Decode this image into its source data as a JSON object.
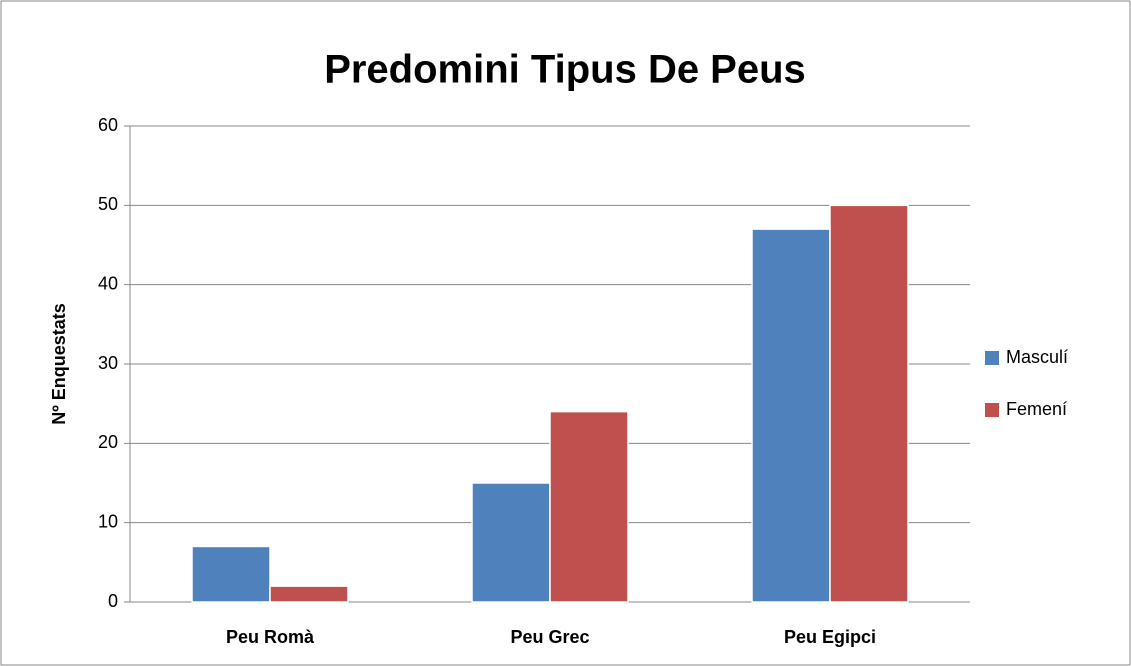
{
  "chart_data": {
    "type": "bar",
    "title": "Predomini Tipus De Peus",
    "ylabel": "Nº Enquestats",
    "categories": [
      "Peu Romà",
      "Peu Grec",
      "Peu Egipci"
    ],
    "series": [
      {
        "name": "Masculí",
        "color": "#4f81bd",
        "values": [
          7,
          15,
          47
        ]
      },
      {
        "name": "Femení",
        "color": "#c0504d",
        "values": [
          2,
          24,
          50
        ]
      }
    ],
    "ylim": [
      0,
      60
    ],
    "yticks": [
      0,
      10,
      20,
      30,
      40,
      50,
      60
    ],
    "grid": true,
    "legend": "right"
  }
}
